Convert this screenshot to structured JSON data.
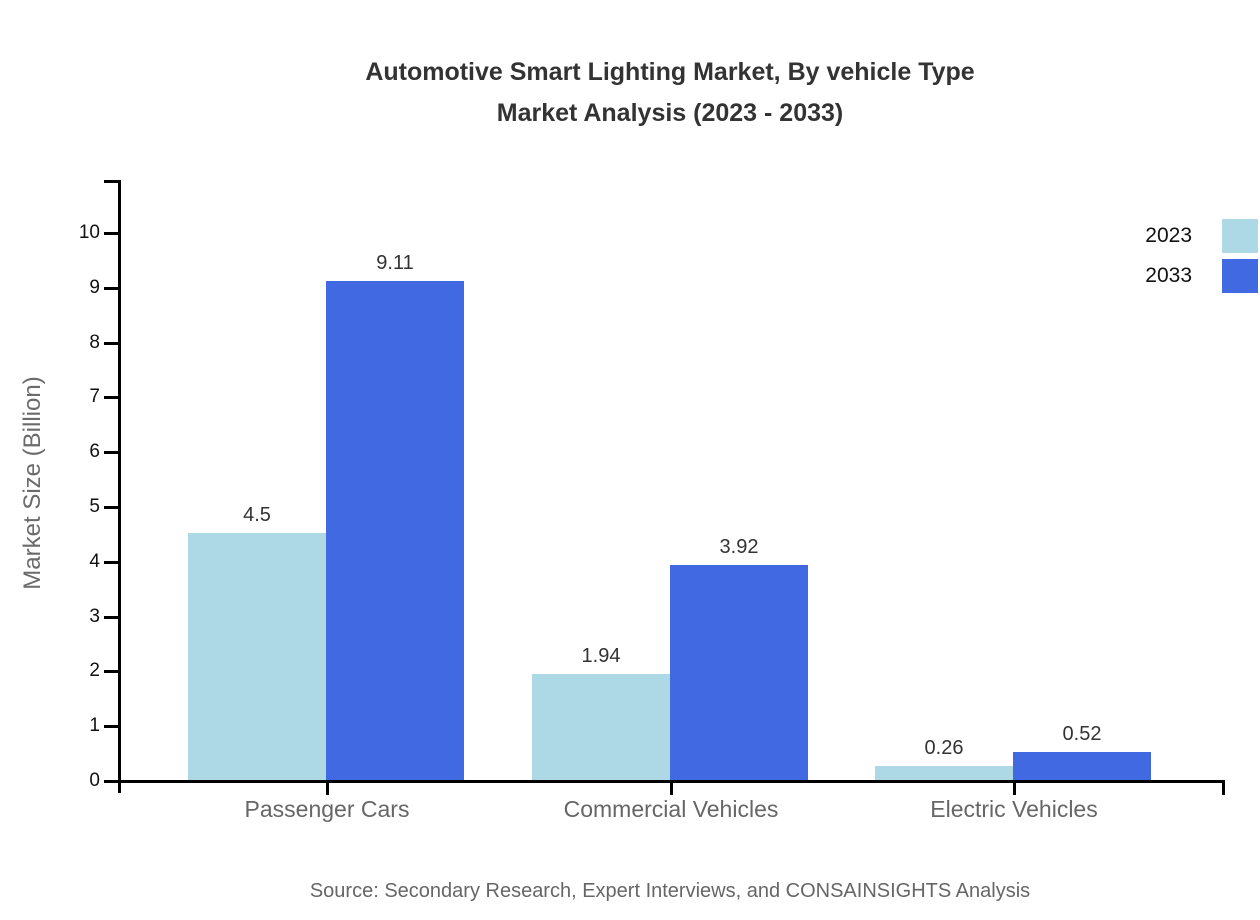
{
  "header": {
    "title_line1": "Automotive Smart Lighting Market, By vehicle Type",
    "title_line2": "Market Analysis (2023 - 2033)"
  },
  "source_note": "Source: Secondary Research, Expert Interviews, and CONSAINSIGHTS Analysis",
  "colors": {
    "series_2023": "#ADD8E6",
    "series_2033": "#4169E1",
    "axis": "#000000",
    "title_text": "#333333",
    "value_label_text": "#333333",
    "tick_label_text": "#111111",
    "category_label_text": "#666666",
    "muted_text": "#666666"
  },
  "chart_data": {
    "type": "bar",
    "title": "Automotive Smart Lighting Market, By vehicle Type Market Analysis (2023 - 2033)",
    "categories": [
      "Passenger Cars",
      "Commercial Vehicles",
      "Electric Vehicles"
    ],
    "series": [
      {
        "name": "2023",
        "color": "#ADD8E6",
        "values": [
          4.5,
          1.94,
          0.26
        ]
      },
      {
        "name": "2033",
        "color": "#4169E1",
        "values": [
          9.11,
          3.92,
          0.52
        ]
      }
    ],
    "xlabel": "",
    "ylabel": "Market Size (Billion)",
    "ylim": [
      0,
      10
    ],
    "yticks": [
      0,
      1,
      2,
      3,
      4,
      5,
      6,
      7,
      8,
      9,
      10
    ],
    "grid": false,
    "legend_position": "top-right",
    "bar_value_labels": true
  }
}
